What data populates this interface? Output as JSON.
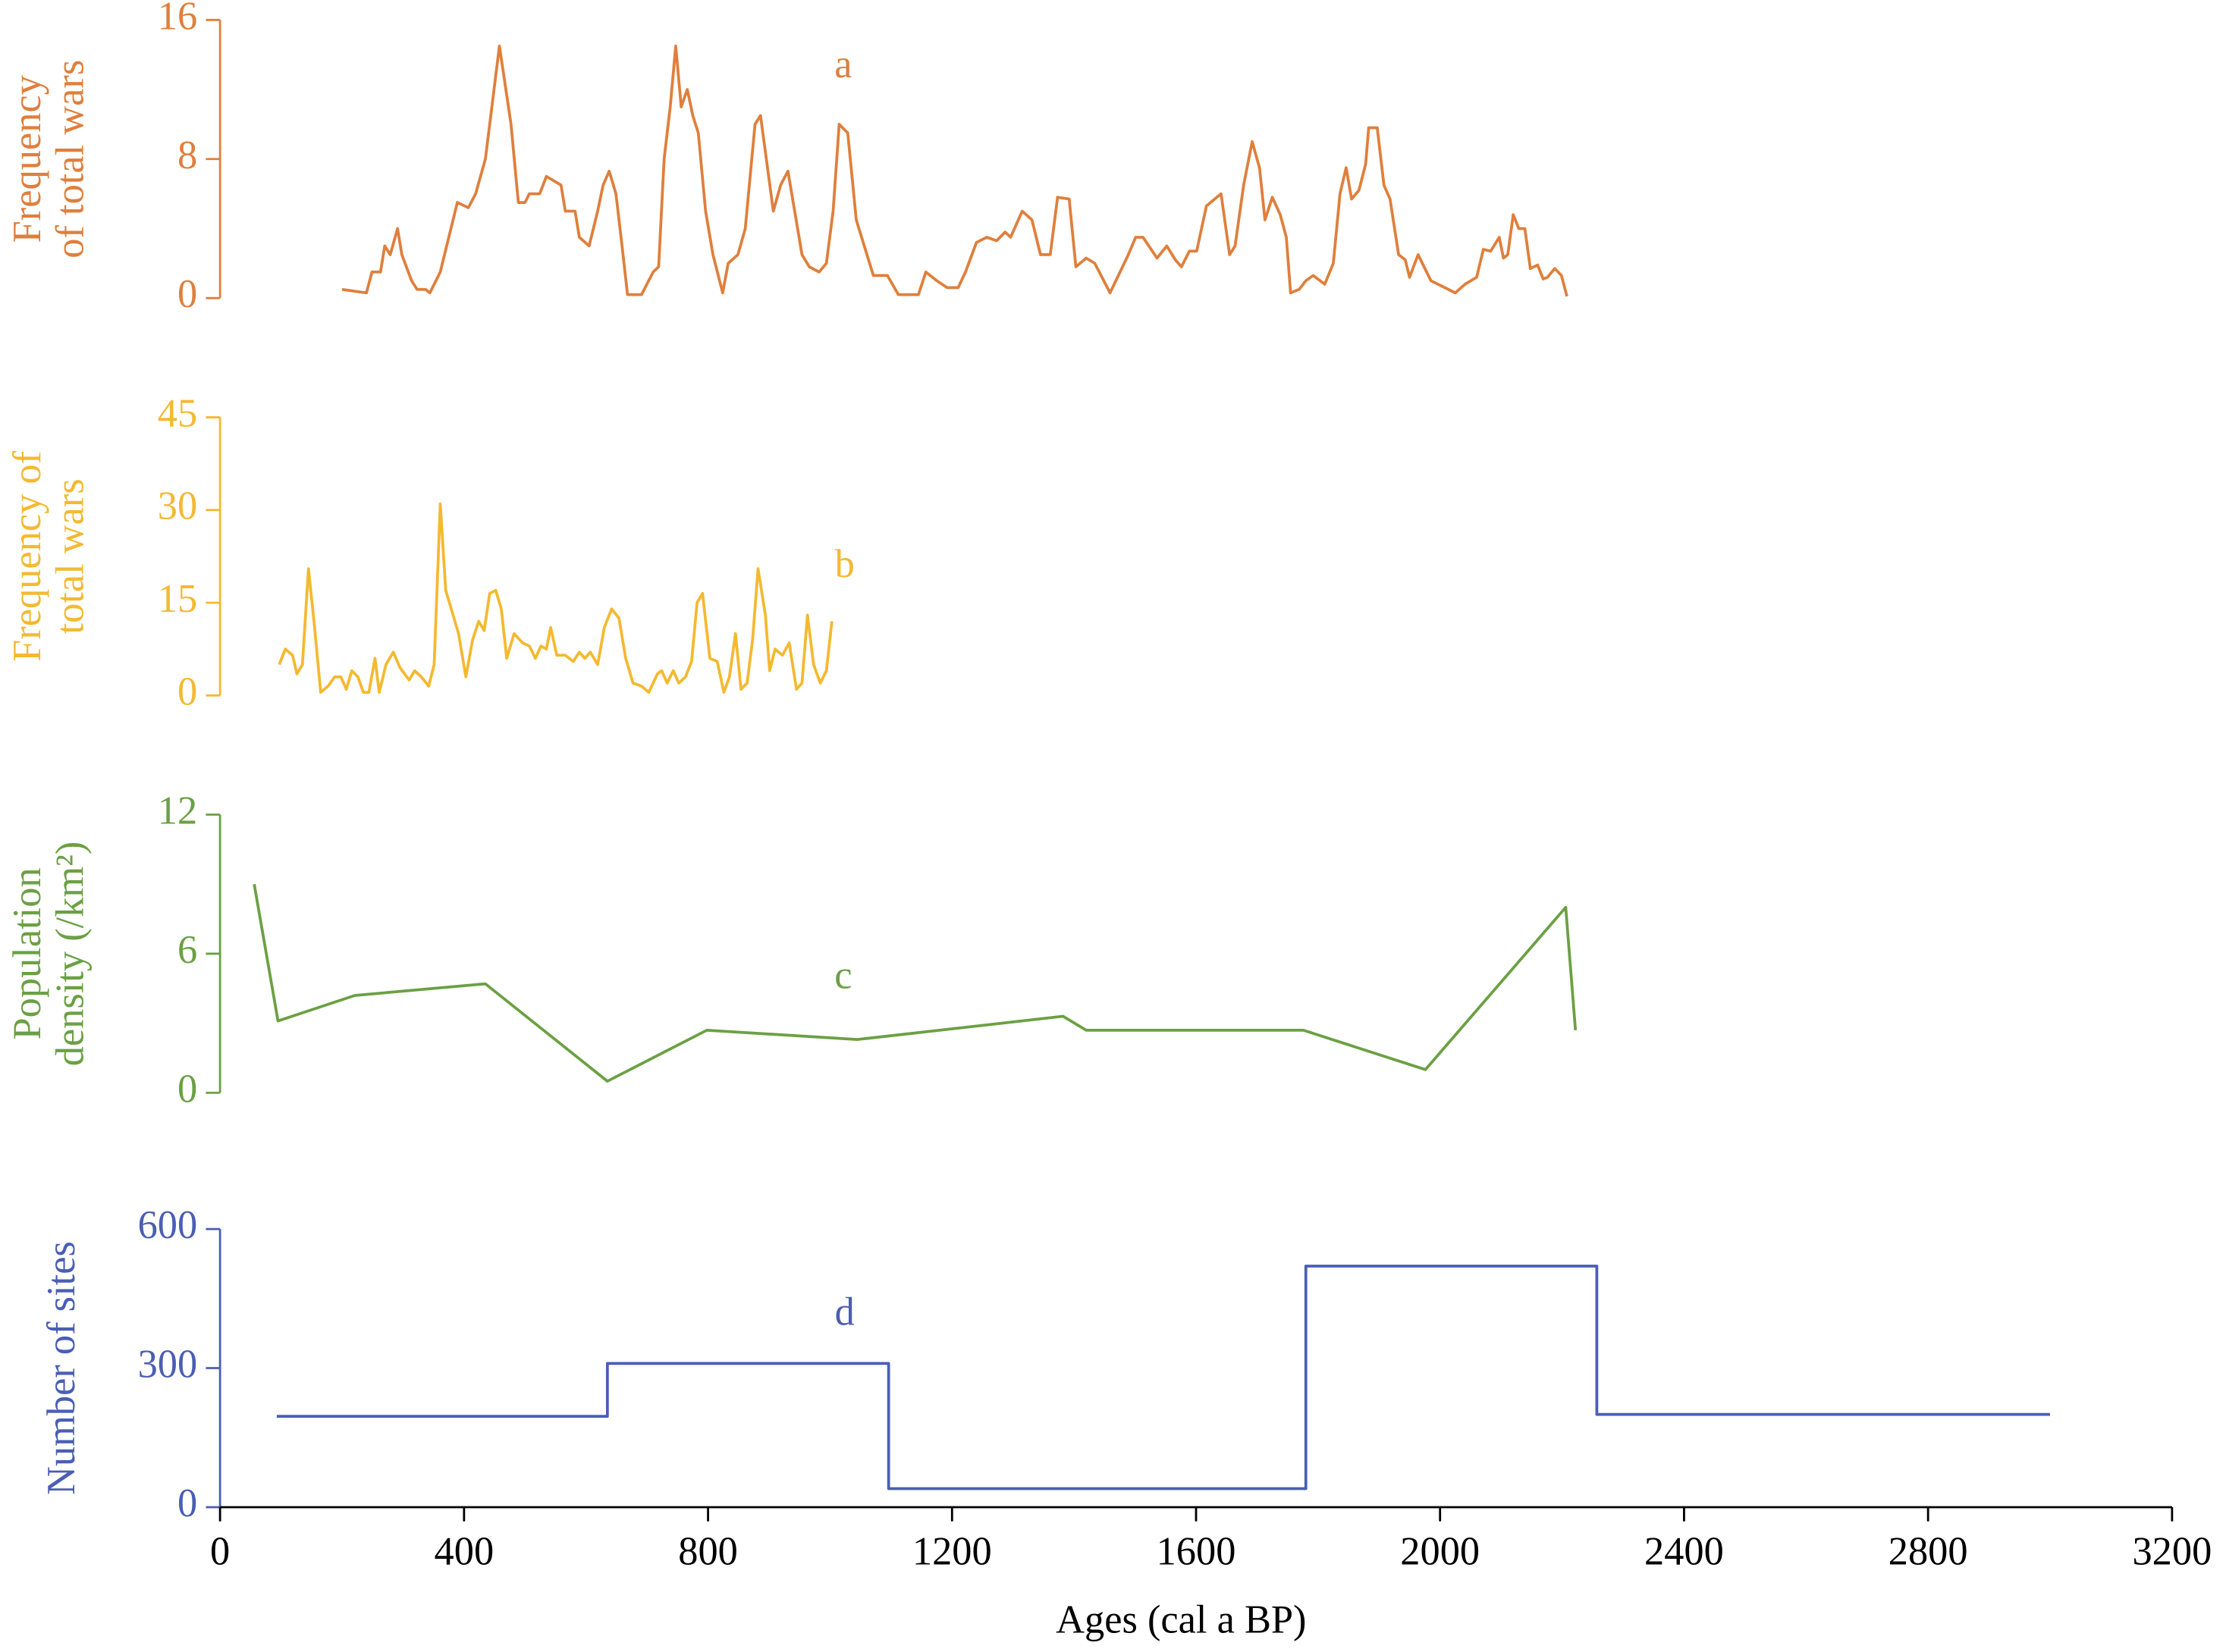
{
  "chart_data": [
    {
      "type": "line",
      "annotation": "a",
      "ylabel": [
        "Frequency",
        "of total wars"
      ],
      "color": "#df7f3c",
      "xlim": [
        0,
        3200
      ],
      "ylim": [
        0,
        16
      ],
      "yticks": [
        0,
        8,
        16
      ],
      "x": [
        200,
        240,
        249,
        263,
        270,
        279,
        291,
        298,
        314,
        323,
        337,
        344,
        361,
        375,
        389,
        407,
        419,
        435,
        458,
        477,
        489,
        500,
        507,
        524,
        535,
        559,
        566,
        582,
        589,
        605,
        619,
        628,
        638,
        649,
        659,
        668,
        691,
        710,
        719,
        728,
        738,
        747,
        756,
        766,
        775,
        784,
        796,
        808,
        824,
        833,
        849,
        861,
        877,
        886,
        907,
        919,
        931,
        942,
        954,
        966,
        982,
        994,
        1005,
        1015,
        1029,
        1043,
        1071,
        1094,
        1112,
        1145,
        1157,
        1175,
        1192,
        1210,
        1222,
        1240,
        1257,
        1273,
        1287,
        1296,
        1315,
        1331,
        1345,
        1361,
        1373,
        1392,
        1403,
        1420,
        1434,
        1459,
        1489,
        1501,
        1513,
        1536,
        1552,
        1566,
        1576,
        1589,
        1601,
        1617,
        1641,
        1655,
        1664,
        1678,
        1692,
        1704,
        1713,
        1725,
        1738,
        1748,
        1755,
        1769,
        1780,
        1792,
        1811,
        1825,
        1836,
        1846,
        1855,
        1867,
        1878,
        1883,
        1897,
        1908,
        1918,
        1932,
        1943,
        1950,
        1964,
        1985,
        2008,
        2025,
        2041,
        2060,
        2071,
        2083,
        2097,
        2104,
        2111,
        2120,
        2129,
        2139,
        2148,
        2160,
        2169,
        2176,
        2188,
        2199,
        2208
      ],
      "values": [
        0.5,
        0.3,
        1.5,
        1.5,
        3,
        2.5,
        4,
        2.5,
        1,
        0.5,
        0.5,
        0.3,
        1.5,
        3.5,
        5.5,
        5.2,
        6,
        8,
        14.5,
        10,
        5.5,
        5.5,
        6,
        6,
        7,
        6.5,
        5,
        5,
        3.5,
        3,
        5,
        6.5,
        7.3,
        6,
        3,
        0.2,
        0.2,
        1.5,
        1.8,
        8,
        11,
        14.5,
        11,
        12,
        10.5,
        9.5,
        5,
        2.5,
        0.3,
        2,
        2.5,
        4,
        10,
        10.5,
        5,
        6.5,
        7.3,
        5,
        2.5,
        1.8,
        1.5,
        2,
        5,
        10,
        9.5,
        4.5,
        1.3,
        1.3,
        0.2,
        0.2,
        1.5,
        1,
        0.6,
        0.6,
        1.5,
        3.2,
        3.5,
        3.3,
        3.8,
        3.5,
        5,
        4.5,
        2.5,
        2.5,
        5.8,
        5.7,
        1.8,
        2.3,
        2,
        0.3,
        2.5,
        3.5,
        3.5,
        2.3,
        3,
        2.2,
        1.8,
        2.7,
        2.7,
        5.3,
        6,
        2.5,
        3,
        6.5,
        9,
        7.5,
        4.5,
        5.8,
        4.8,
        3.5,
        0.3,
        0.5,
        1,
        1.3,
        0.8,
        2,
        6,
        7.5,
        5.7,
        6.2,
        7.7,
        9.8,
        9.8,
        6.5,
        5.7,
        2.5,
        2.2,
        1.2,
        2.5,
        1,
        0.6,
        0.3,
        0.8,
        1.2,
        2.8,
        2.7,
        3.5,
        2.3,
        2.5,
        4.8,
        4,
        4,
        1.7,
        1.9,
        1.1,
        1.2,
        1.7,
        1.3,
        0.1
      ]
    },
    {
      "type": "line",
      "annotation": "b",
      "ylabel": [
        "Frequency of",
        "total wars"
      ],
      "color": "#f4b930",
      "xlim": [
        0,
        3200
      ],
      "ylim": [
        0,
        45
      ],
      "yticks": [
        0,
        15,
        30,
        45
      ],
      "x": [
        97,
        107,
        119,
        126,
        135,
        145,
        154,
        165,
        177,
        188,
        198,
        207,
        216,
        226,
        235,
        244,
        254,
        261,
        272,
        284,
        295,
        310,
        319,
        330,
        342,
        351,
        361,
        370,
        379,
        391,
        403,
        414,
        424,
        433,
        442,
        452,
        461,
        470,
        482,
        496,
        507,
        517,
        526,
        535,
        542,
        552,
        566,
        579,
        589,
        598,
        607,
        619,
        630,
        642,
        654,
        665,
        677,
        691,
        703,
        717,
        724,
        733,
        743,
        752,
        763,
        773,
        782,
        791,
        803,
        815,
        826,
        835,
        845,
        854,
        864,
        873,
        882,
        894,
        901,
        910,
        922,
        933,
        945,
        954,
        963,
        973,
        984,
        994,
        1003
      ],
      "values": [
        5,
        7.5,
        6.5,
        3.5,
        5,
        20.5,
        12,
        0.5,
        1.5,
        3,
        3,
        1,
        4,
        3,
        0.5,
        0.5,
        6,
        0.5,
        5,
        7,
        4.5,
        2.5,
        4,
        3,
        1.5,
        5,
        31,
        17,
        14,
        10,
        3,
        9,
        12,
        10.5,
        16.5,
        17,
        14,
        6,
        10,
        8.5,
        8,
        6,
        8,
        7.5,
        11,
        6.5,
        6.5,
        5.5,
        7,
        6,
        7,
        5,
        11,
        14,
        12.5,
        6,
        2,
        1.5,
        0.5,
        3.5,
        4,
        2,
        4,
        2,
        3,
        5.5,
        15,
        16.5,
        6,
        5.5,
        0.5,
        3,
        10,
        1,
        2,
        9,
        20.5,
        13,
        4,
        7.5,
        6.5,
        8.5,
        1,
        2,
        13,
        5,
        2,
        4,
        12
      ]
    },
    {
      "type": "line",
      "annotation": "c",
      "ylabel": [
        "Population",
        "density (/km²)"
      ],
      "color": "#6ba043",
      "xlim": [
        0,
        3200
      ],
      "ylim": [
        0,
        12
      ],
      "yticks": [
        0,
        6,
        12
      ],
      "x": [
        56,
        95,
        221,
        435,
        635,
        798,
        1045,
        1382,
        1420,
        1655,
        1776,
        1976,
        2206,
        2222
      ],
      "values": [
        9,
        3.1,
        4.2,
        4.7,
        0.5,
        2.7,
        2.3,
        3.3,
        2.7,
        2.7,
        2.7,
        1,
        8,
        2.7
      ]
    },
    {
      "type": "line",
      "annotation": "d",
      "ylabel": [
        "Number of sites"
      ],
      "color": "#4a5eb4",
      "xlabel": "Ages (cal a BP)",
      "xlim": [
        0,
        3200
      ],
      "xticks": [
        0,
        400,
        800,
        1200,
        1600,
        2000,
        2400,
        2800,
        3200
      ],
      "ylim": [
        0,
        600
      ],
      "yticks": [
        0,
        300,
        600
      ],
      "x": [
        93,
        635,
        635,
        1096,
        1096,
        1780,
        1780,
        2257,
        2257,
        3000
      ],
      "values": [
        196,
        196,
        310,
        310,
        40,
        40,
        520,
        520,
        200,
        200
      ]
    }
  ]
}
